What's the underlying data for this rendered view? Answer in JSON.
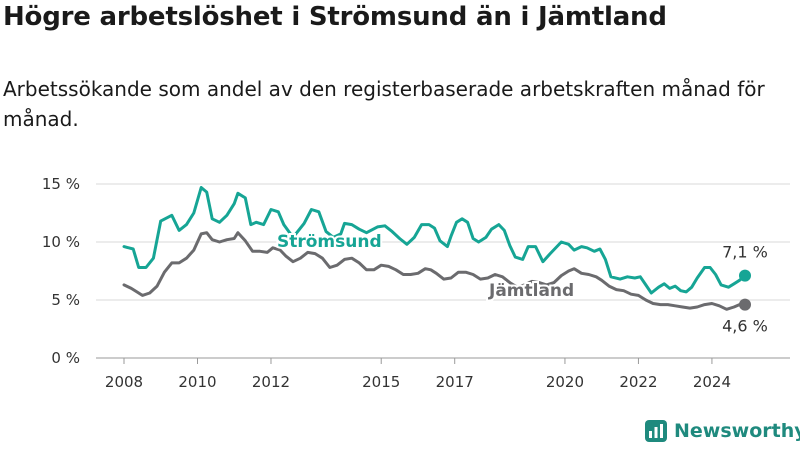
{
  "title": "Högre arbetslöshet i Strömsund än i Jämtland",
  "subtitle": "Arbetssökande som andel av den registerbaserade arbetskraften månad för månad.",
  "brand": {
    "name": "Newsworthy",
    "icon": "newsworthy-logo-icon",
    "color": "#1f8a7e"
  },
  "chart_data": {
    "type": "line",
    "title": "Högre arbetslöshet i Strömsund än i Jämtland",
    "ylim": [
      0,
      15
    ],
    "y_unit": "%",
    "y_ticks": [
      {
        "value": 0,
        "label": "0 %"
      },
      {
        "value": 5,
        "label": "5 %"
      },
      {
        "value": 10,
        "label": "10 %"
      },
      {
        "value": 15,
        "label": "15 %"
      }
    ],
    "x_ticks": [
      {
        "value": 2008,
        "label": "2008"
      },
      {
        "value": 2010,
        "label": "2010"
      },
      {
        "value": 2012,
        "label": "2012"
      },
      {
        "value": 2015,
        "label": "2015"
      },
      {
        "value": 2017,
        "label": "2017"
      },
      {
        "value": 2020,
        "label": "2020"
      },
      {
        "value": 2022,
        "label": "2022"
      },
      {
        "value": 2024,
        "label": "2024"
      }
    ],
    "grid": "horizontal",
    "legend": "direct-labels",
    "series": [
      {
        "name": "Strömsund",
        "color": "#16a595",
        "end_label": "7,1 %",
        "points": [
          [
            2008.0,
            9.6
          ],
          [
            2008.25,
            9.4
          ],
          [
            2008.4,
            7.8
          ],
          [
            2008.6,
            7.8
          ],
          [
            2008.8,
            8.6
          ],
          [
            2009.0,
            11.8
          ],
          [
            2009.3,
            12.3
          ],
          [
            2009.5,
            11.0
          ],
          [
            2009.7,
            11.5
          ],
          [
            2009.9,
            12.5
          ],
          [
            2010.1,
            14.7
          ],
          [
            2010.25,
            14.3
          ],
          [
            2010.4,
            12.0
          ],
          [
            2010.6,
            11.7
          ],
          [
            2010.8,
            12.3
          ],
          [
            2011.0,
            13.3
          ],
          [
            2011.1,
            14.2
          ],
          [
            2011.3,
            13.8
          ],
          [
            2011.45,
            11.5
          ],
          [
            2011.6,
            11.7
          ],
          [
            2011.8,
            11.5
          ],
          [
            2012.0,
            12.8
          ],
          [
            2012.2,
            12.6
          ],
          [
            2012.35,
            11.5
          ],
          [
            2012.6,
            10.4
          ],
          [
            2012.9,
            11.6
          ],
          [
            2013.1,
            12.8
          ],
          [
            2013.3,
            12.6
          ],
          [
            2013.5,
            10.9
          ],
          [
            2013.7,
            10.4
          ],
          [
            2013.9,
            10.7
          ],
          [
            2014.0,
            11.6
          ],
          [
            2014.2,
            11.5
          ],
          [
            2014.4,
            11.1
          ],
          [
            2014.6,
            10.8
          ],
          [
            2014.9,
            11.3
          ],
          [
            2015.1,
            11.4
          ],
          [
            2015.3,
            10.9
          ],
          [
            2015.5,
            10.3
          ],
          [
            2015.7,
            9.8
          ],
          [
            2015.9,
            10.4
          ],
          [
            2016.1,
            11.5
          ],
          [
            2016.3,
            11.5
          ],
          [
            2016.45,
            11.2
          ],
          [
            2016.6,
            10.1
          ],
          [
            2016.8,
            9.6
          ],
          [
            2016.9,
            10.5
          ],
          [
            2017.05,
            11.7
          ],
          [
            2017.2,
            12.0
          ],
          [
            2017.35,
            11.7
          ],
          [
            2017.5,
            10.3
          ],
          [
            2017.65,
            10.0
          ],
          [
            2017.85,
            10.4
          ],
          [
            2018.0,
            11.1
          ],
          [
            2018.2,
            11.5
          ],
          [
            2018.35,
            11.0
          ],
          [
            2018.5,
            9.7
          ],
          [
            2018.65,
            8.7
          ],
          [
            2018.85,
            8.5
          ],
          [
            2019.0,
            9.6
          ],
          [
            2019.2,
            9.6
          ],
          [
            2019.4,
            8.3
          ],
          [
            2019.6,
            9.0
          ],
          [
            2019.9,
            10.0
          ],
          [
            2020.1,
            9.8
          ],
          [
            2020.25,
            9.3
          ],
          [
            2020.45,
            9.6
          ],
          [
            2020.6,
            9.5
          ],
          [
            2020.8,
            9.2
          ],
          [
            2020.95,
            9.4
          ],
          [
            2021.1,
            8.5
          ],
          [
            2021.25,
            7.0
          ],
          [
            2021.5,
            6.8
          ],
          [
            2021.7,
            7.0
          ],
          [
            2021.9,
            6.9
          ],
          [
            2022.05,
            7.0
          ],
          [
            2022.2,
            6.3
          ],
          [
            2022.35,
            5.6
          ],
          [
            2022.55,
            6.1
          ],
          [
            2022.7,
            6.4
          ],
          [
            2022.85,
            6.0
          ],
          [
            2023.0,
            6.2
          ],
          [
            2023.15,
            5.8
          ],
          [
            2023.3,
            5.7
          ],
          [
            2023.45,
            6.1
          ],
          [
            2023.6,
            6.9
          ],
          [
            2023.8,
            7.8
          ],
          [
            2023.95,
            7.8
          ],
          [
            2024.1,
            7.2
          ],
          [
            2024.25,
            6.3
          ],
          [
            2024.45,
            6.1
          ],
          [
            2024.6,
            6.4
          ],
          [
            2024.75,
            6.7
          ],
          [
            2024.9,
            7.1
          ]
        ]
      },
      {
        "name": "Jämtland",
        "color": "#6b6b6e",
        "end_label": "4,6 %",
        "points": [
          [
            2008.0,
            6.3
          ],
          [
            2008.2,
            6.0
          ],
          [
            2008.35,
            5.7
          ],
          [
            2008.5,
            5.4
          ],
          [
            2008.7,
            5.6
          ],
          [
            2008.9,
            6.2
          ],
          [
            2009.1,
            7.4
          ],
          [
            2009.3,
            8.2
          ],
          [
            2009.5,
            8.2
          ],
          [
            2009.7,
            8.6
          ],
          [
            2009.9,
            9.3
          ],
          [
            2010.1,
            10.7
          ],
          [
            2010.25,
            10.8
          ],
          [
            2010.4,
            10.2
          ],
          [
            2010.6,
            10.0
          ],
          [
            2010.8,
            10.2
          ],
          [
            2011.0,
            10.3
          ],
          [
            2011.1,
            10.8
          ],
          [
            2011.3,
            10.1
          ],
          [
            2011.5,
            9.2
          ],
          [
            2011.7,
            9.2
          ],
          [
            2011.9,
            9.1
          ],
          [
            2012.05,
            9.5
          ],
          [
            2012.25,
            9.3
          ],
          [
            2012.4,
            8.8
          ],
          [
            2012.6,
            8.3
          ],
          [
            2012.8,
            8.6
          ],
          [
            2013.0,
            9.1
          ],
          [
            2013.2,
            9.0
          ],
          [
            2013.4,
            8.6
          ],
          [
            2013.6,
            7.8
          ],
          [
            2013.8,
            8.0
          ],
          [
            2014.0,
            8.5
          ],
          [
            2014.2,
            8.6
          ],
          [
            2014.4,
            8.2
          ],
          [
            2014.6,
            7.6
          ],
          [
            2014.8,
            7.6
          ],
          [
            2015.0,
            8.0
          ],
          [
            2015.2,
            7.9
          ],
          [
            2015.4,
            7.6
          ],
          [
            2015.6,
            7.2
          ],
          [
            2015.8,
            7.2
          ],
          [
            2016.0,
            7.3
          ],
          [
            2016.2,
            7.7
          ],
          [
            2016.35,
            7.6
          ],
          [
            2016.5,
            7.3
          ],
          [
            2016.7,
            6.8
          ],
          [
            2016.9,
            6.9
          ],
          [
            2017.1,
            7.4
          ],
          [
            2017.3,
            7.4
          ],
          [
            2017.5,
            7.2
          ],
          [
            2017.7,
            6.8
          ],
          [
            2017.9,
            6.9
          ],
          [
            2018.1,
            7.2
          ],
          [
            2018.3,
            7.0
          ],
          [
            2018.5,
            6.5
          ],
          [
            2018.7,
            6.1
          ],
          [
            2018.9,
            6.3
          ],
          [
            2019.1,
            6.6
          ],
          [
            2019.3,
            6.5
          ],
          [
            2019.5,
            6.3
          ],
          [
            2019.7,
            6.5
          ],
          [
            2019.9,
            7.1
          ],
          [
            2020.1,
            7.5
          ],
          [
            2020.25,
            7.7
          ],
          [
            2020.45,
            7.3
          ],
          [
            2020.65,
            7.2
          ],
          [
            2020.85,
            7.0
          ],
          [
            2021.0,
            6.7
          ],
          [
            2021.2,
            6.2
          ],
          [
            2021.4,
            5.9
          ],
          [
            2021.6,
            5.8
          ],
          [
            2021.8,
            5.5
          ],
          [
            2022.0,
            5.4
          ],
          [
            2022.2,
            5.0
          ],
          [
            2022.4,
            4.7
          ],
          [
            2022.6,
            4.6
          ],
          [
            2022.8,
            4.6
          ],
          [
            2023.0,
            4.5
          ],
          [
            2023.2,
            4.4
          ],
          [
            2023.4,
            4.3
          ],
          [
            2023.6,
            4.4
          ],
          [
            2023.8,
            4.6
          ],
          [
            2024.0,
            4.7
          ],
          [
            2024.2,
            4.5
          ],
          [
            2024.4,
            4.2
          ],
          [
            2024.6,
            4.4
          ],
          [
            2024.75,
            4.6
          ],
          [
            2024.9,
            4.6
          ]
        ]
      }
    ]
  }
}
